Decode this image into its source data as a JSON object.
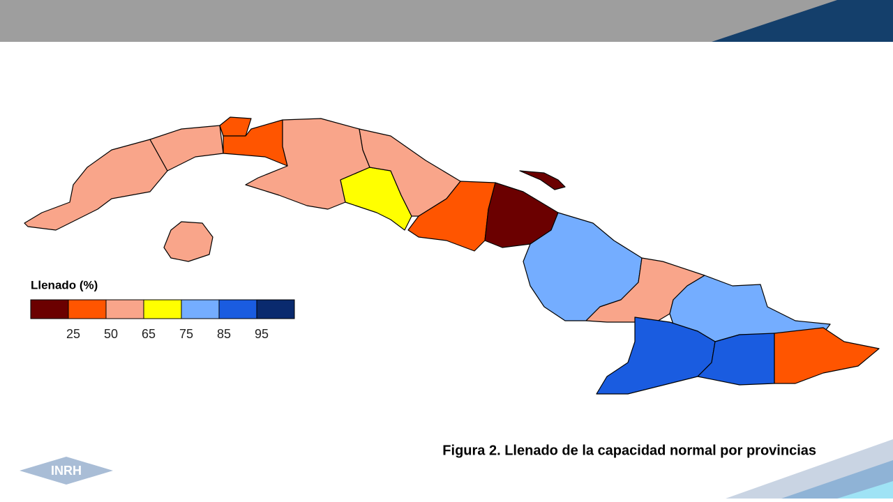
{
  "legend": {
    "title": "Llenado (%)",
    "colors": [
      "#6b0000",
      "#ff5500",
      "#f9a58a",
      "#ffff00",
      "#74adff",
      "#1a5ce0",
      "#0a2a6e"
    ],
    "ticks": [
      "25",
      "50",
      "65",
      "75",
      "85",
      "95"
    ]
  },
  "caption": "Figura 2. Llenado de la capacidad normal por provincias",
  "logo": "INRH"
}
